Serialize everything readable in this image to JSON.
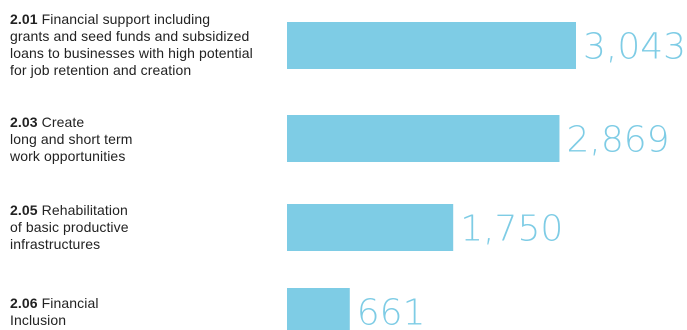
{
  "chart_data": {
    "type": "bar",
    "orientation": "horizontal",
    "categories": [
      {
        "code": "2.01",
        "text": "Financial support including\ngrants and seed funds and subsidized\nloans to businesses with high potential\nfor job retention and creation"
      },
      {
        "code": "2.03",
        "text": "Create\nlong and short term\nwork opportunities"
      },
      {
        "code": "2.05",
        "text": "Rehabilitation\nof basic productive\ninfrastructures"
      },
      {
        "code": "2.06",
        "text": "Financial\nInclusion"
      }
    ],
    "values": [
      3043,
      2869,
      1750,
      661
    ],
    "value_labels": [
      "3,043",
      "2,869",
      "1,750",
      "661"
    ],
    "bar_color": "#7ECCE5",
    "value_label_color": "#7ECCE5",
    "label_color": "#222222",
    "axis_visible": false,
    "grid": false,
    "legend": "none"
  }
}
